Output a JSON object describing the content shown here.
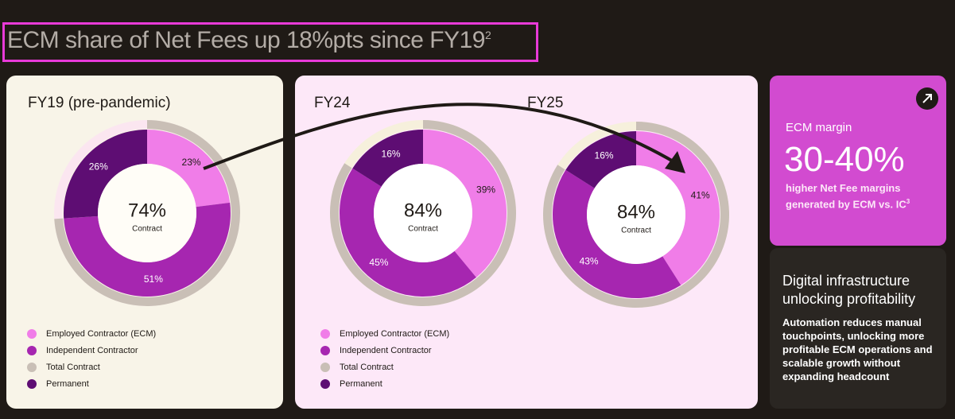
{
  "title": "ECM share of Net Fees up 18%pts since FY19",
  "title_footnote": "2",
  "margin_panel": {
    "label": "ECM margin",
    "value": "30-40%",
    "description": "higher Net Fee margins generated by ECM vs. IC",
    "footnote": "3"
  },
  "digital_panel": {
    "heading": "Digital infrastructure unlocking profitability",
    "body": "Automation reduces manual touchpoints, unlocking more profitable ECM operations and scalable growth without expanding headcount"
  },
  "chart_data": [
    {
      "type": "donut",
      "title": "FY19 (pre-pandemic)",
      "categories": [
        "Employed Contractor (ECM)",
        "Independent Contractor",
        "Permanent"
      ],
      "values": [
        23,
        51,
        26
      ],
      "value_labels": [
        "23%",
        "51%",
        "26%"
      ],
      "colors": [
        "#f07de8",
        "#a626b0",
        "#5e0d73"
      ],
      "outer": {
        "name": "Total Contract",
        "value": 74,
        "value_label": "74%",
        "color": "#c9bfb6"
      },
      "center_text": "Contract"
    },
    {
      "type": "donut",
      "title": "FY24",
      "categories": [
        "Employed Contractor (ECM)",
        "Independent Contractor",
        "Permanent"
      ],
      "values": [
        39,
        45,
        16
      ],
      "value_labels": [
        "39%",
        "45%",
        "16%"
      ],
      "colors": [
        "#f07de8",
        "#a626b0",
        "#5e0d73"
      ],
      "outer": {
        "name": "Total Contract",
        "value": 84,
        "value_label": "84%",
        "color": "#c9bfb6"
      },
      "center_text": "Contract"
    },
    {
      "type": "donut",
      "title": "FY25",
      "categories": [
        "Employed Contractor (ECM)",
        "Independent Contractor",
        "Permanent"
      ],
      "values": [
        41,
        43,
        16
      ],
      "value_labels": [
        "41%",
        "43%",
        "16%"
      ],
      "colors": [
        "#f07de8",
        "#a626b0",
        "#5e0d73"
      ],
      "outer": {
        "name": "Total Contract",
        "value": 84,
        "value_label": "84%",
        "color": "#c9bfb6"
      },
      "center_text": "Contract"
    }
  ]
}
